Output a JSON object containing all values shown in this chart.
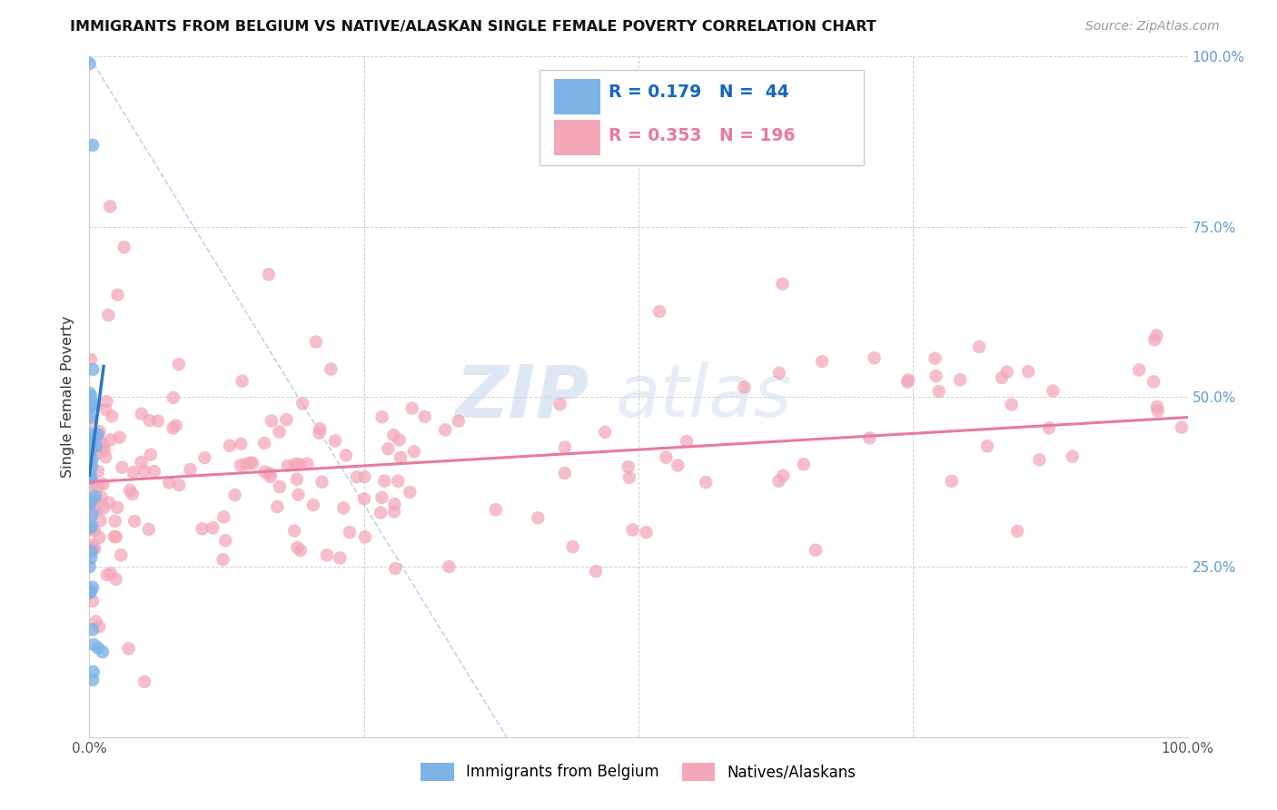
{
  "title": "IMMIGRANTS FROM BELGIUM VS NATIVE/ALASKAN SINGLE FEMALE POVERTY CORRELATION CHART",
  "source": "Source: ZipAtlas.com",
  "ylabel": "Single Female Poverty",
  "xlim": [
    0,
    1
  ],
  "ylim": [
    0,
    1
  ],
  "color_belgium": "#7EB3E8",
  "color_native": "#F4A7B9",
  "color_belgium_line": "#2979C8",
  "color_native_line": "#E87A9F",
  "color_diagonal": "#B8CBE8",
  "watermark_color": "#C8D8EE",
  "legend_text1": "R = 0.179   N =  44",
  "legend_text2": "R = 0.353   N = 196",
  "legend_color1": "#1565C0",
  "legend_color2": "#E87A9F",
  "right_tick_color": "#5B9BD5"
}
